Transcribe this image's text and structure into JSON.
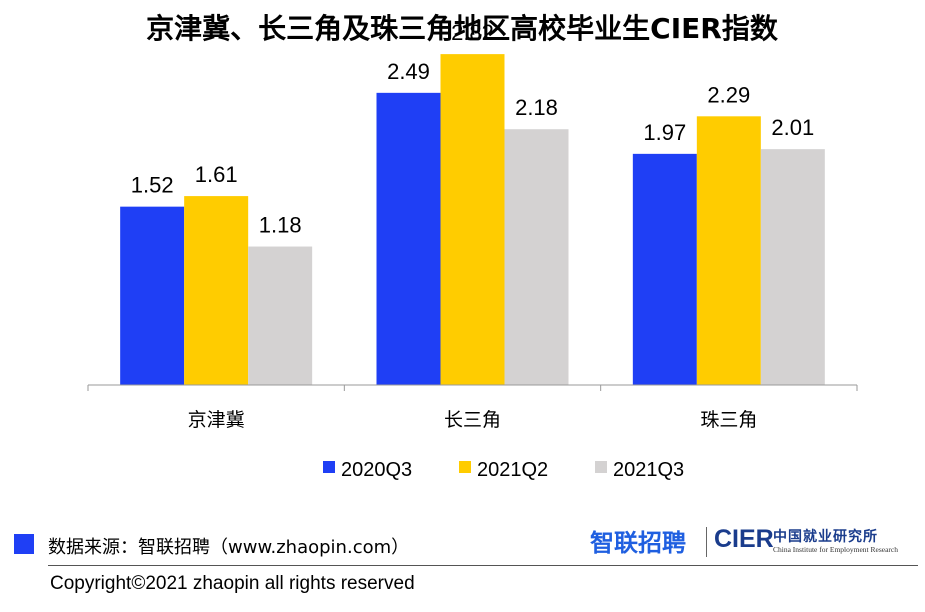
{
  "chart_data": {
    "type": "bar",
    "title": "京津冀、长三角及珠三角地区高校毕业生CIER指数",
    "categories": [
      "京津冀",
      "长三角",
      "珠三角"
    ],
    "series": [
      {
        "name": "2020Q3",
        "values": [
          1.52,
          2.49,
          1.97
        ],
        "color": "#1f3ff5"
      },
      {
        "name": "2021Q2",
        "values": [
          1.61,
          2.82,
          2.29
        ],
        "color": "#ffcc00"
      },
      {
        "name": "2021Q3",
        "values": [
          1.18,
          2.18,
          2.01
        ],
        "color": "#d4d2d2"
      }
    ],
    "ylim": [
      0,
      3.0
    ],
    "grid": false,
    "legend_position": "bottom",
    "data_labels": true
  },
  "footer": {
    "source": "数据来源：智联招聘（www.zhaopin.com）",
    "copyright": "Copyright©2021 zhaopin all rights reserved",
    "source_marker_color": "#1f3ff5"
  },
  "logos": {
    "zhaopin": "智联招聘",
    "cier": "CIER",
    "cier_cn": "中国就业研究所",
    "cier_en": "China Institute for Employment Research"
  }
}
